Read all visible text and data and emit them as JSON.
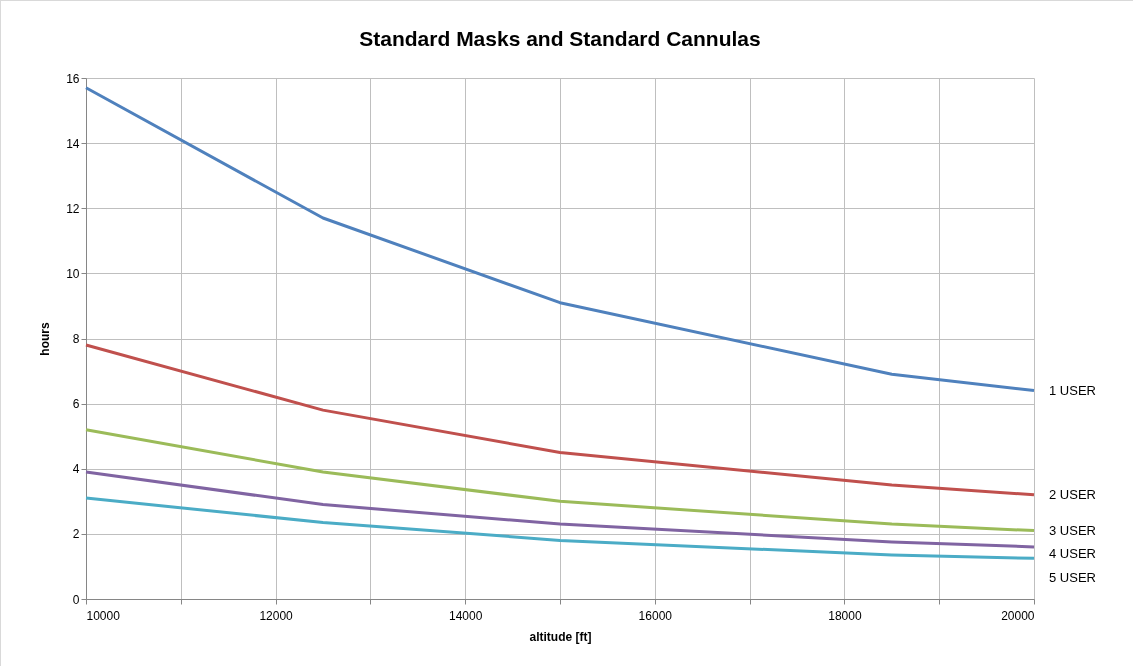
{
  "chart_data": {
    "type": "line",
    "title": "Standard Masks and Standard Cannulas",
    "xlabel": "altitude  [ft]",
    "ylabel": "hours",
    "x": [
      10000,
      12500,
      15000,
      18500,
      20000
    ],
    "series": [
      {
        "name": "1 USER",
        "color": "#4f81bd",
        "values": [
          15.7,
          11.7,
          9.1,
          6.9,
          6.4
        ]
      },
      {
        "name": "2 USER",
        "color": "#c0504d",
        "values": [
          7.8,
          5.8,
          4.5,
          3.5,
          3.2
        ]
      },
      {
        "name": "3 USER",
        "color": "#9bbb59",
        "values": [
          5.2,
          3.9,
          3.0,
          2.3,
          2.1
        ]
      },
      {
        "name": "4 USER",
        "color": "#8064a2",
        "values": [
          3.9,
          2.9,
          2.3,
          1.75,
          1.6
        ]
      },
      {
        "name": "5 USER",
        "color": "#4bacc6",
        "values": [
          3.1,
          2.35,
          1.8,
          1.35,
          1.25
        ]
      }
    ],
    "xlim": [
      10000,
      20000
    ],
    "xticks": [
      10000,
      {
        "value": 11000,
        "label": null
      },
      12000,
      {
        "value": 13000,
        "label": null
      },
      14000,
      {
        "value": 15000,
        "label": null
      },
      16000,
      {
        "value": 17000,
        "label": null
      },
      18000,
      {
        "value": 19000,
        "label": null
      },
      20000
    ],
    "ylim": [
      0,
      16
    ],
    "yticks": [
      0,
      2,
      4,
      6,
      8,
      10,
      12,
      14,
      16
    ],
    "grid": true,
    "legend": false,
    "marker": "none",
    "line_style": "solid"
  }
}
